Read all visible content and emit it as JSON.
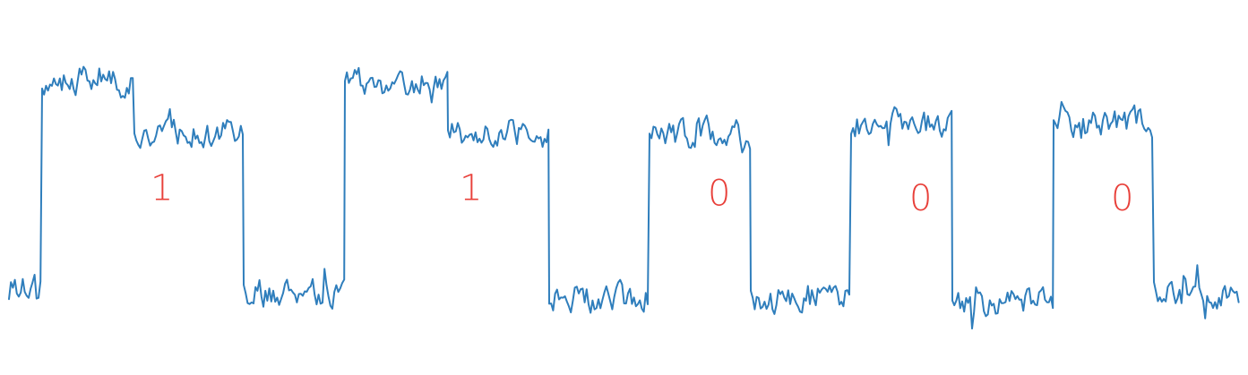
{
  "chart_data": {
    "type": "line",
    "title": "",
    "xlabel": "",
    "ylabel": "",
    "grid": false,
    "axes_visible": false,
    "line_color": "#2f7ebc",
    "label_color": "#e8403a",
    "ylim": [
      -1.5,
      1.5
    ],
    "xlim": [
      0,
      1373
    ],
    "noise_amplitude": 0.13,
    "segments": [
      {
        "x_start": 0,
        "x_end": 37,
        "level_start": -0.95,
        "level_end": -0.95
      },
      {
        "x_start": 37,
        "x_end": 140,
        "level_start": 1.05,
        "level_end": 1.05
      },
      {
        "x_start": 140,
        "x_end": 262,
        "level_start": 0.55,
        "level_end": 0.55
      },
      {
        "x_start": 262,
        "x_end": 375,
        "level_start": -1.0,
        "level_end": -1.0
      },
      {
        "x_start": 375,
        "x_end": 490,
        "level_start": 1.05,
        "level_end": 1.05
      },
      {
        "x_start": 490,
        "x_end": 603,
        "level_start": 0.55,
        "level_end": 0.55
      },
      {
        "x_start": 603,
        "x_end": 715,
        "level_start": -1.05,
        "level_end": -1.05
      },
      {
        "x_start": 715,
        "x_end": 828,
        "level_start": 0.55,
        "level_end": 0.55
      },
      {
        "x_start": 828,
        "x_end": 940,
        "level_start": -1.05,
        "level_end": -1.05
      },
      {
        "x_start": 940,
        "x_end": 1053,
        "level_start": 0.65,
        "level_end": 0.65
      },
      {
        "x_start": 1053,
        "x_end": 1166,
        "level_start": -1.1,
        "level_end": -1.1
      },
      {
        "x_start": 1166,
        "x_end": 1278,
        "level_start": 0.65,
        "level_end": 0.65
      },
      {
        "x_start": 1278,
        "x_end": 1373,
        "level_start": -1.0,
        "level_end": -1.0
      }
    ],
    "annotations": [
      {
        "text": "1",
        "x": 158,
        "y": 0.0
      },
      {
        "text": "1",
        "x": 503,
        "y": 0.0
      },
      {
        "text": "0",
        "x": 780,
        "y": -0.05
      },
      {
        "text": "0",
        "x": 1005,
        "y": -0.1
      },
      {
        "text": "0",
        "x": 1230,
        "y": -0.1
      }
    ]
  }
}
